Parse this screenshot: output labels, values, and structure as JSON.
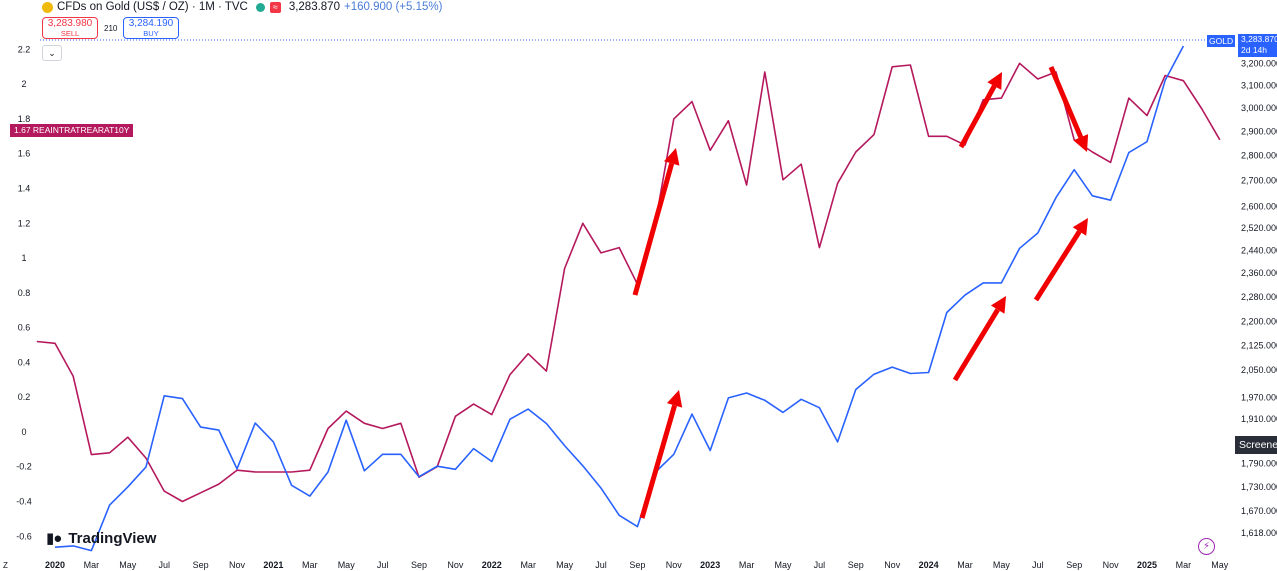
{
  "header": {
    "symbol_text": "CFDs on Gold (US$ / OZ) · 1M · TVC",
    "badge": "≈",
    "last_price": "3,283.870",
    "change": "+160.900 (+5.15%)"
  },
  "trade": {
    "sell_price": "3,283.980",
    "sell_label": "SELL",
    "spread": "210",
    "buy_price": "3,284.190",
    "buy_label": "BUY",
    "collapse_icon": "chevron-down-icon"
  },
  "overlay": {
    "left_value_tag": "1.67 REAINTRATREARAT10Y",
    "gold_symbol_tag": "GOLD",
    "gold_price_tag": "3,283.870",
    "gold_countdown": "2d 14h",
    "screener_label": "Screener",
    "z_label": "Z",
    "logo_text": "TradingView"
  },
  "chart_data": {
    "type": "line",
    "left_axis_ticks": [
      "2.2",
      "2",
      "1.8",
      "1.6",
      "1.4",
      "1.2",
      "1",
      "0.8",
      "0.6",
      "0.4",
      "0.2",
      "0",
      "-0.2",
      "-0.4",
      "-0.6"
    ],
    "left_ylim": [
      -0.65,
      2.3
    ],
    "right_axis_ticks": [
      "3,200.000",
      "3,100.000",
      "3,000.000",
      "2,900.000",
      "2,800.000",
      "2,700.000",
      "2,600.000",
      "2,520.000",
      "2,440.000",
      "2,360.000",
      "2,280.000",
      "2,200.000",
      "2,125.000",
      "2,050.000",
      "1,970.000",
      "1,910.000",
      "1,850.000",
      "1,790.000",
      "1,730.000",
      "1,670.000",
      "1,618.000"
    ],
    "right_scale": "log",
    "right_ylim": [
      1590,
      3380
    ],
    "x_ticks": [
      "2020",
      "Mar",
      "May",
      "Jul",
      "Sep",
      "Nov",
      "2021",
      "Mar",
      "May",
      "Jul",
      "Sep",
      "Nov",
      "2022",
      "Mar",
      "May",
      "Jul",
      "Sep",
      "Nov",
      "2023",
      "Mar",
      "May",
      "Jul",
      "Sep",
      "Nov",
      "2024",
      "Mar",
      "May",
      "Jul",
      "Sep",
      "Nov",
      "2025",
      "Mar",
      "May"
    ],
    "x_tick_month_index": [
      0,
      2,
      4,
      6,
      8,
      10,
      12,
      14,
      16,
      18,
      20,
      22,
      24,
      26,
      28,
      30,
      32,
      34,
      36,
      38,
      40,
      42,
      44,
      46,
      48,
      50,
      52,
      54,
      56,
      58,
      60,
      62,
      64
    ],
    "x_origin": "2020-01",
    "series": [
      {
        "name": "REAINTRATREARAT10Y",
        "color": "#b5195d",
        "axis": "left",
        "start_month_index": -1,
        "values": [
          0.52,
          0.51,
          0.32,
          -0.13,
          -0.12,
          -0.03,
          -0.15,
          -0.34,
          -0.4,
          -0.35,
          -0.3,
          -0.22,
          -0.23,
          -0.23,
          -0.23,
          -0.22,
          0.02,
          0.12,
          0.05,
          0.02,
          0.05,
          -0.26,
          -0.2,
          0.09,
          0.16,
          0.1,
          0.33,
          0.45,
          0.35,
          0.94,
          1.2,
          1.03,
          1.06,
          0.85,
          1.21,
          1.8,
          1.9,
          1.62,
          1.79,
          1.42,
          2.07,
          1.45,
          1.54,
          1.06,
          1.43,
          1.61,
          1.71,
          2.1,
          2.11,
          1.7,
          1.7,
          1.65,
          1.91,
          1.92,
          2.12,
          2.03,
          2.07,
          1.68,
          1.61,
          1.55,
          1.92,
          1.82,
          2.05,
          2.02,
          1.86,
          1.68
        ]
      },
      {
        "name": "GOLD",
        "color": "#2962ff",
        "axis": "right",
        "start_month_index": 0,
        "values": [
          1585,
          1588,
          1577,
          1685,
          1730,
          1781,
          1975,
          1967,
          1887,
          1879,
          1776,
          1898,
          1847,
          1734,
          1707,
          1768,
          1906,
          1771,
          1814,
          1814,
          1756,
          1783,
          1775,
          1829,
          1795,
          1909,
          1937,
          1897,
          1837,
          1784,
          1727,
          1660,
          1633,
          1768,
          1814,
          1923,
          1824,
          1969,
          1983,
          1962,
          1928,
          1965,
          1941,
          1847,
          1993,
          2038,
          2059,
          2040,
          2043,
          2229,
          2286,
          2327,
          2327,
          2447,
          2502,
          2634,
          2743,
          2641,
          2624,
          2812,
          2857,
          3124,
          3283
        ]
      }
    ],
    "annotations": [
      {
        "type": "arrow",
        "color": "#f00000",
        "direction": "up"
      },
      {
        "type": "arrow",
        "color": "#f00000",
        "direction": "up"
      },
      {
        "type": "arrow",
        "color": "#f00000",
        "direction": "up"
      },
      {
        "type": "arrow",
        "color": "#f00000",
        "direction": "up"
      },
      {
        "type": "arrow",
        "color": "#f00000",
        "direction": "up"
      },
      {
        "type": "arrow",
        "color": "#f00000",
        "direction": "down"
      }
    ]
  }
}
